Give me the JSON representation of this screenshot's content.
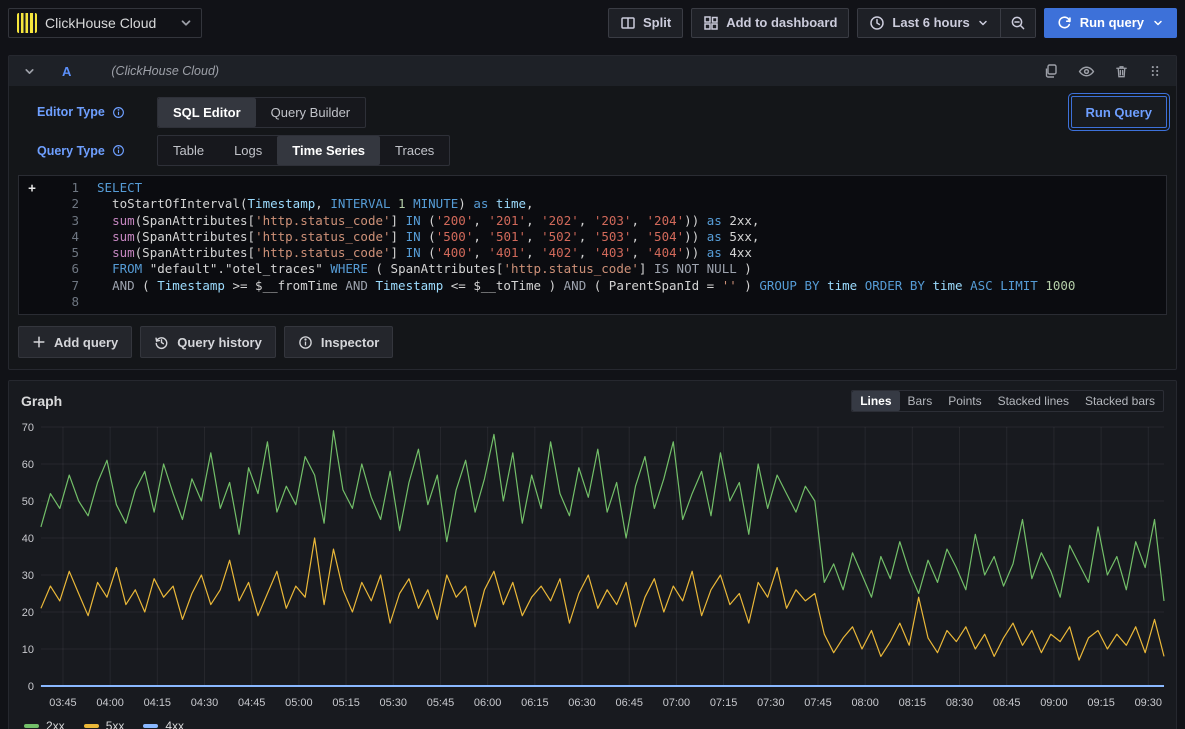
{
  "topbar": {
    "datasource": "ClickHouse Cloud",
    "split_label": "Split",
    "add_to_dashboard_label": "Add to dashboard",
    "time_range_label": "Last 6 hours",
    "run_query_label": "Run query"
  },
  "icons": {
    "datasource-logo": "yellow square with dark vertical stripes",
    "split-icon": "two-pane rectangle",
    "dashboard-grid-icon": "four squares",
    "clock-icon": "clock face",
    "zoom-out-icon": "magnifier with minus",
    "refresh-icon": "circular arrows",
    "chevron-down-icon": "v chevron",
    "copy-icon": "two pages",
    "eye-icon": "eye",
    "trash-icon": "trash can",
    "drag-handle-icon": "dot grid",
    "info-icon": "circled i",
    "history-icon": "clock with counterclockwise arrow",
    "plus-icon": "plus sign"
  },
  "query_panel": {
    "ref_id": "A",
    "datasource_hint": "(ClickHouse Cloud)",
    "editor_type_label": "Editor Type",
    "editor_type_options": [
      "SQL Editor",
      "Query Builder"
    ],
    "editor_type_selected": "SQL Editor",
    "query_type_label": "Query Type",
    "query_type_options": [
      "Table",
      "Logs",
      "Time Series",
      "Traces"
    ],
    "query_type_selected": "Time Series",
    "run_query_label": "Run Query",
    "sql_lines": [
      [
        [
          "k",
          "SELECT"
        ]
      ],
      [
        [
          "d",
          "  toStartOfInterval("
        ],
        [
          "v",
          "Timestamp"
        ],
        [
          "d",
          ", "
        ],
        [
          "k",
          "INTERVAL"
        ],
        [
          "n",
          " 1 "
        ],
        [
          "k",
          "MINUTE"
        ],
        [
          "d",
          ") "
        ],
        [
          "k",
          "as"
        ],
        [
          "v",
          " time"
        ],
        [
          "d",
          ","
        ]
      ],
      [
        [
          "d",
          "  "
        ],
        [
          "f",
          "sum"
        ],
        [
          "d",
          "(SpanAttributes["
        ],
        [
          "s",
          "'http.status_code'"
        ],
        [
          "d",
          "] "
        ],
        [
          "k",
          "IN"
        ],
        [
          "d",
          " ("
        ],
        [
          "s2",
          "'200'"
        ],
        [
          "d",
          ", "
        ],
        [
          "s2",
          "'201'"
        ],
        [
          "d",
          ", "
        ],
        [
          "s2",
          "'202'"
        ],
        [
          "d",
          ", "
        ],
        [
          "s2",
          "'203'"
        ],
        [
          "d",
          ", "
        ],
        [
          "s2",
          "'204'"
        ],
        [
          "d",
          ")) "
        ],
        [
          "k",
          "as"
        ],
        [
          "d",
          " 2xx,"
        ]
      ],
      [
        [
          "d",
          "  "
        ],
        [
          "f",
          "sum"
        ],
        [
          "d",
          "(SpanAttributes["
        ],
        [
          "s",
          "'http.status_code'"
        ],
        [
          "d",
          "] "
        ],
        [
          "k",
          "IN"
        ],
        [
          "d",
          " ("
        ],
        [
          "s2",
          "'500'"
        ],
        [
          "d",
          ", "
        ],
        [
          "s2",
          "'501'"
        ],
        [
          "d",
          ", "
        ],
        [
          "s2",
          "'502'"
        ],
        [
          "d",
          ", "
        ],
        [
          "s2",
          "'503'"
        ],
        [
          "d",
          ", "
        ],
        [
          "s2",
          "'504'"
        ],
        [
          "d",
          ")) "
        ],
        [
          "k",
          "as"
        ],
        [
          "d",
          " 5xx,"
        ]
      ],
      [
        [
          "d",
          "  "
        ],
        [
          "f",
          "sum"
        ],
        [
          "d",
          "(SpanAttributes["
        ],
        [
          "s",
          "'http.status_code'"
        ],
        [
          "d",
          "] "
        ],
        [
          "k",
          "IN"
        ],
        [
          "d",
          " ("
        ],
        [
          "s2",
          "'400'"
        ],
        [
          "d",
          ", "
        ],
        [
          "s2",
          "'401'"
        ],
        [
          "d",
          ", "
        ],
        [
          "s2",
          "'402'"
        ],
        [
          "d",
          ", "
        ],
        [
          "s2",
          "'403'"
        ],
        [
          "d",
          ", "
        ],
        [
          "s2",
          "'404'"
        ],
        [
          "d",
          ")) "
        ],
        [
          "k",
          "as"
        ],
        [
          "d",
          " 4xx"
        ]
      ],
      [
        [
          "d",
          "  "
        ],
        [
          "k",
          "FROM"
        ],
        [
          "d",
          " \"default\".\"otel_traces\" "
        ],
        [
          "k",
          "WHERE"
        ],
        [
          "d",
          " ( SpanAttributes["
        ],
        [
          "s",
          "'http.status_code'"
        ],
        [
          "d",
          "] "
        ],
        [
          "o",
          "IS NOT NULL"
        ],
        [
          "d",
          " )"
        ]
      ],
      [
        [
          "d",
          "  "
        ],
        [
          "o",
          "AND"
        ],
        [
          "d",
          " ( "
        ],
        [
          "v",
          "Timestamp"
        ],
        [
          "d",
          " >= $__fromTime "
        ],
        [
          "o",
          "AND"
        ],
        [
          "d",
          " "
        ],
        [
          "v",
          "Timestamp"
        ],
        [
          "d",
          " <= $__toTime ) "
        ],
        [
          "o",
          "AND"
        ],
        [
          "d",
          " ( ParentSpanId = "
        ],
        [
          "s",
          "''"
        ],
        [
          "d",
          " ) "
        ],
        [
          "k",
          "GROUP BY"
        ],
        [
          "v",
          " time "
        ],
        [
          "k",
          "ORDER BY"
        ],
        [
          "v",
          " time "
        ],
        [
          "k",
          "ASC"
        ],
        [
          "d",
          " "
        ],
        [
          "k",
          "LIMIT"
        ],
        [
          "n",
          " 1000"
        ]
      ],
      []
    ]
  },
  "actions": {
    "add_query": "Add query",
    "query_history": "Query history",
    "inspector": "Inspector"
  },
  "graph_panel": {
    "title": "Graph",
    "modes": [
      "Lines",
      "Bars",
      "Points",
      "Stacked lines",
      "Stacked bars"
    ],
    "mode_selected": "Lines",
    "chart_data": {
      "type": "line",
      "title": "Graph",
      "grid": true,
      "legend_position": "bottom-left",
      "x_axis": {
        "unit": "time HH:MM",
        "t_start_min": 218,
        "t_end_min": 575,
        "sample_step_min": 3,
        "ticks": [
          {
            "label": "03:45",
            "t": 225
          },
          {
            "label": "04:00",
            "t": 240
          },
          {
            "label": "04:15",
            "t": 255
          },
          {
            "label": "04:30",
            "t": 270
          },
          {
            "label": "04:45",
            "t": 285
          },
          {
            "label": "05:00",
            "t": 300
          },
          {
            "label": "05:15",
            "t": 315
          },
          {
            "label": "05:30",
            "t": 330
          },
          {
            "label": "05:45",
            "t": 345
          },
          {
            "label": "06:00",
            "t": 360
          },
          {
            "label": "06:15",
            "t": 375
          },
          {
            "label": "06:30",
            "t": 390
          },
          {
            "label": "06:45",
            "t": 405
          },
          {
            "label": "07:00",
            "t": 420
          },
          {
            "label": "07:15",
            "t": 435
          },
          {
            "label": "07:30",
            "t": 450
          },
          {
            "label": "07:45",
            "t": 465
          },
          {
            "label": "08:00",
            "t": 480
          },
          {
            "label": "08:15",
            "t": 495
          },
          {
            "label": "08:30",
            "t": 510
          },
          {
            "label": "08:45",
            "t": 525
          },
          {
            "label": "09:00",
            "t": 540
          },
          {
            "label": "09:15",
            "t": 555
          },
          {
            "label": "09:30",
            "t": 570
          }
        ]
      },
      "y_axis": {
        "min": 0,
        "max": 70,
        "ticks": [
          0,
          10,
          20,
          30,
          40,
          50,
          60,
          70
        ]
      },
      "series": [
        {
          "name": "2xx",
          "color": "#73BF69",
          "values": [
            43,
            52,
            48,
            57,
            50,
            46,
            55,
            61,
            49,
            44,
            53,
            58,
            47,
            60,
            52,
            45,
            56,
            50,
            63,
            48,
            55,
            41,
            59,
            52,
            66,
            47,
            54,
            49,
            62,
            57,
            44,
            69,
            53,
            48,
            60,
            51,
            45,
            58,
            42,
            55,
            64,
            49,
            57,
            39,
            53,
            61,
            47,
            56,
            68,
            50,
            63,
            44,
            57,
            48,
            66,
            52,
            46,
            59,
            51,
            64,
            47,
            55,
            40,
            54,
            62,
            48,
            56,
            66,
            45,
            52,
            58,
            46,
            63,
            50,
            55,
            41,
            60,
            48,
            57,
            52,
            47,
            54,
            50,
            28,
            33,
            26,
            36,
            30,
            24,
            35,
            29,
            39,
            31,
            25,
            34,
            28,
            37,
            32,
            26,
            41,
            30,
            35,
            27,
            33,
            45,
            29,
            36,
            31,
            24,
            38,
            33,
            28,
            43,
            30,
            35,
            26,
            39,
            32,
            45,
            23
          ]
        },
        {
          "name": "5xx",
          "color": "#EAB839",
          "values": [
            21,
            27,
            23,
            31,
            25,
            19,
            28,
            24,
            32,
            22,
            26,
            20,
            29,
            24,
            27,
            18,
            25,
            30,
            22,
            26,
            34,
            23,
            28,
            19,
            25,
            31,
            21,
            27,
            24,
            40,
            22,
            37,
            26,
            20,
            28,
            23,
            30,
            17,
            25,
            29,
            21,
            26,
            18,
            30,
            24,
            27,
            16,
            26,
            31,
            22,
            28,
            19,
            24,
            27,
            23,
            29,
            17,
            25,
            30,
            21,
            26,
            22,
            28,
            16,
            24,
            29,
            20,
            27,
            23,
            31,
            19,
            26,
            30,
            22,
            25,
            17,
            28,
            24,
            32,
            21,
            26,
            23,
            25,
            14,
            9,
            13,
            16,
            10,
            15,
            8,
            12,
            17,
            11,
            24,
            13,
            9,
            15,
            12,
            16,
            10,
            14,
            8,
            13,
            17,
            11,
            15,
            9,
            14,
            12,
            16,
            7,
            13,
            15,
            10,
            14,
            11,
            16,
            9,
            18,
            8
          ]
        },
        {
          "name": "4xx",
          "color": "#8AB8FF",
          "constant_value": 0
        }
      ]
    }
  },
  "colors": {
    "page_bg": "#111217",
    "panel_bg": "#181a1f",
    "primary_blue": "#3d71d9",
    "link_blue": "#6e9fff",
    "ref_blue": "#5b8ff9",
    "clickhouse_yellow": "#f6e63c"
  }
}
